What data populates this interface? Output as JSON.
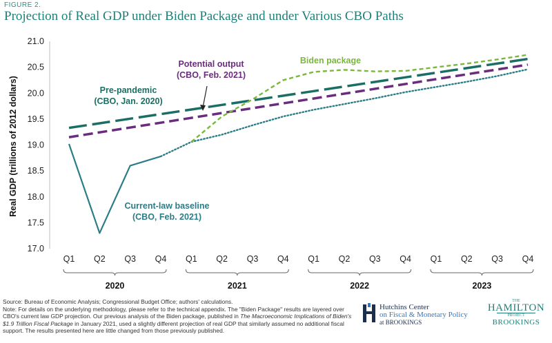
{
  "figure_label": "FIGURE 2.",
  "chart_data": {
    "type": "line",
    "title": "Projection of Real GDP under Biden Package and under Various CBO Paths",
    "ylabel": "Real GDP (trillions of 2012 dollars)",
    "xlabel": "",
    "ylim": [
      17.0,
      21.0
    ],
    "yticks": [
      17.0,
      17.5,
      18.0,
      18.5,
      19.0,
      19.5,
      20.0,
      20.5,
      21.0
    ],
    "ytick_labels": [
      "17.0",
      "17.5",
      "18.0",
      "18.5",
      "19.0",
      "19.5",
      "20.0",
      "20.5",
      "21.0"
    ],
    "categories": [
      "Q1",
      "Q2",
      "Q3",
      "Q4",
      "Q1",
      "Q2",
      "Q3",
      "Q4",
      "Q1",
      "Q2",
      "Q3",
      "Q4",
      "Q1",
      "Q2",
      "Q3",
      "Q4"
    ],
    "years": [
      {
        "label": "2020",
        "start": 0,
        "end": 3
      },
      {
        "label": "2021",
        "start": 4,
        "end": 7
      },
      {
        "label": "2022",
        "start": 8,
        "end": 11
      },
      {
        "label": "2023",
        "start": 12,
        "end": 15
      }
    ],
    "grid": false,
    "series": [
      {
        "key": "pre",
        "color": "#1a6e63",
        "dash": "26,8",
        "width": 3.5,
        "x": [
          0,
          15
        ],
        "values": [
          19.33,
          20.66
        ]
      },
      {
        "key": "pot",
        "color": "#6a2c7d",
        "dash": "14,7",
        "width": 3.5,
        "x": [
          0,
          15
        ],
        "values": [
          19.15,
          20.55
        ]
      },
      {
        "key": "hist",
        "color": "#2a7d87",
        "dash": "",
        "width": 2.2,
        "x": [
          0,
          1,
          2,
          3
        ],
        "values": [
          19.02,
          17.3,
          18.6,
          18.78
        ]
      },
      {
        "key": "base",
        "color": "#2a7d87",
        "dash": "1.5,3",
        "width": 2.4,
        "x": [
          3,
          4,
          5,
          6,
          7,
          8,
          9,
          10,
          11,
          12,
          13,
          14,
          15
        ],
        "values": [
          18.78,
          19.06,
          19.2,
          19.38,
          19.55,
          19.68,
          19.79,
          19.9,
          20.02,
          20.12,
          20.22,
          20.33,
          20.46
        ]
      },
      {
        "key": "biden",
        "color": "#79b83a",
        "dash": "6,4",
        "width": 2.4,
        "x": [
          4,
          5,
          6,
          7,
          8,
          9,
          10,
          11,
          12,
          13,
          14,
          15
        ],
        "values": [
          19.06,
          19.55,
          19.88,
          20.25,
          20.41,
          20.45,
          20.42,
          20.43,
          20.5,
          20.57,
          20.65,
          20.74
        ]
      }
    ],
    "annotations": [
      {
        "key": "pre",
        "lines": [
          "Pre-pandemic",
          "(CBO, Jan. 2020)"
        ],
        "color": "#1a6e63"
      },
      {
        "key": "pot",
        "lines": [
          "Potential output",
          "(CBO, Feb. 2021)"
        ],
        "color": "#6a2c7d"
      },
      {
        "key": "biden",
        "lines": [
          "Biden package"
        ],
        "color": "#79b83a"
      },
      {
        "key": "base",
        "lines": [
          "Current-law baseline",
          "(CBO, Feb. 2021)"
        ],
        "color": "#2a7d87"
      }
    ]
  },
  "footer": {
    "source": "Source: Bureau of Economic Analysis; Congressional Budget Office; authors' calculations.",
    "note_a": "Note: For details on the underlying methodology, please refer to the technical appendix. The \"Biden Package\" results are layered over CBO's current law GDP projection. Our previous analysis of the Biden package, published in ",
    "note_italic": "The Macroeconomic Implications of Biden's $1.9 Trillion Fiscal Package",
    "note_b": " in January 2021, used a slightly different projection of real GDP that similarly assumed no additional fiscal support. The results presented here are little changed from those previously published."
  },
  "logos": {
    "hutchins_line1": "Hutchins Center",
    "hutchins_line2": "on Fiscal & Monetary Policy",
    "hutchins_line3": "at BROOKINGS",
    "hamilton_the": "THE",
    "hamilton_name": "HAMILTON",
    "hamilton_project": "PROJECT",
    "hamilton_brookings": "BROOKINGS"
  }
}
